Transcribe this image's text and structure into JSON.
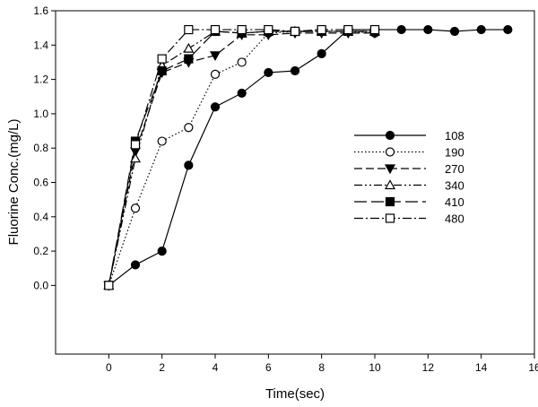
{
  "chart_data": {
    "type": "line",
    "title": "",
    "xlabel": "Time(sec)",
    "ylabel": "Fluorine Conc.(mg/L)",
    "xlim": [
      -2,
      16
    ],
    "ylim": [
      -0.4,
      1.6
    ],
    "xticks": [
      0,
      2,
      4,
      6,
      8,
      10,
      12,
      14,
      16
    ],
    "xtick_labels": [
      "0",
      "2",
      "4",
      "6",
      "8",
      "10",
      "12",
      "14",
      "16"
    ],
    "yticks": [
      0.0,
      0.2,
      0.4,
      0.6,
      0.8,
      1.0,
      1.2,
      1.4,
      1.6
    ],
    "ytick_labels": [
      "0.0",
      "0.2",
      "0.4",
      "0.6",
      "0.8",
      "1.0",
      "1.2",
      "1.4",
      "1.6"
    ],
    "grid": false,
    "legend_position": "center-right",
    "series": [
      {
        "name": "108",
        "marker": "filled-circle",
        "dash": "solid",
        "x": [
          0,
          1,
          2,
          3,
          4,
          5,
          6,
          7,
          8,
          9,
          10,
          11,
          12,
          13,
          14,
          15
        ],
        "y": [
          0.0,
          0.12,
          0.2,
          0.7,
          1.04,
          1.12,
          1.24,
          1.25,
          1.35,
          1.49,
          1.49,
          1.49,
          1.49,
          1.48,
          1.49,
          1.49
        ]
      },
      {
        "name": "190",
        "marker": "open-circle",
        "dash": "dotted",
        "x": [
          0,
          1,
          2,
          3,
          4,
          5,
          6,
          7,
          8,
          9,
          10
        ],
        "y": [
          0.0,
          0.45,
          0.84,
          0.92,
          1.23,
          1.3,
          1.47,
          1.48,
          1.48,
          1.48,
          1.47
        ]
      },
      {
        "name": "270",
        "marker": "filled-triangle-down",
        "dash": "dashed",
        "x": [
          0,
          1,
          2,
          3,
          4,
          5,
          6,
          7,
          8,
          9,
          10
        ],
        "y": [
          0.0,
          0.78,
          1.24,
          1.3,
          1.34,
          1.46,
          1.46,
          1.47,
          1.47,
          1.47,
          1.47
        ]
      },
      {
        "name": "340",
        "marker": "open-triangle-up",
        "dash": "dash-dot-dot",
        "x": [
          0,
          1,
          2,
          3,
          4,
          5,
          6,
          7,
          8,
          9,
          10
        ],
        "y": [
          0.0,
          0.74,
          1.28,
          1.38,
          1.48,
          1.47,
          1.48,
          1.48,
          1.48,
          1.48,
          1.48
        ]
      },
      {
        "name": "410",
        "marker": "filled-square",
        "dash": "long-dash",
        "x": [
          0,
          1,
          2,
          3,
          4,
          5,
          6,
          7,
          8,
          9,
          10
        ],
        "y": [
          0.0,
          0.84,
          1.25,
          1.32,
          1.48,
          1.47,
          1.48,
          1.48,
          1.48,
          1.48,
          1.48
        ]
      },
      {
        "name": "480",
        "marker": "open-square",
        "dash": "dash-dot",
        "x": [
          0,
          1,
          2,
          3,
          4,
          5,
          6,
          7,
          8,
          9,
          10
        ],
        "y": [
          0.0,
          0.82,
          1.32,
          1.49,
          1.49,
          1.49,
          1.49,
          1.48,
          1.49,
          1.49,
          1.49
        ]
      }
    ]
  }
}
